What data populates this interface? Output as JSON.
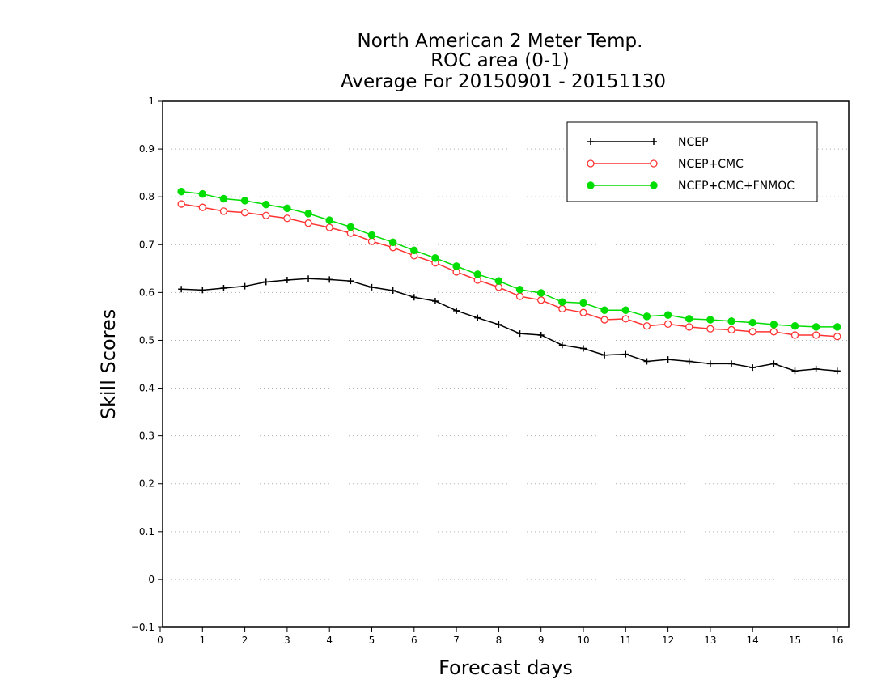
{
  "chart_data": {
    "type": "line",
    "title": "North American 2 Meter Temp.",
    "subtitle": "ROC area (0-1)",
    "subtitle2": "Average For 20150901 - 20151130",
    "xlabel": "Forecast days",
    "ylabel": "Skill Scores",
    "xlim": [
      0,
      16.2
    ],
    "ylim": [
      -0.1,
      1
    ],
    "xticks": [
      "0",
      "1",
      "2",
      "3",
      "4",
      "5",
      "6",
      "7",
      "8",
      "9",
      "10",
      "11",
      "12",
      "13",
      "14",
      "15",
      "16"
    ],
    "yticks": [
      "−0.1",
      "0",
      "0.1",
      "0.2",
      "0.3",
      "0.4",
      "0.5",
      "0.6",
      "0.7",
      "0.8",
      "0.9",
      "1"
    ],
    "grid": true,
    "legend_position": "top-right",
    "x": [
      0.5,
      1.0,
      1.5,
      2.0,
      2.5,
      3.0,
      3.5,
      4.0,
      4.5,
      5.0,
      5.5,
      6.0,
      6.5,
      7.0,
      7.5,
      8.0,
      8.5,
      9.0,
      9.5,
      10.0,
      10.5,
      11.0,
      11.5,
      12.0,
      12.5,
      13.0,
      13.5,
      14.0,
      14.5,
      15.0,
      15.5,
      16.0
    ],
    "series": [
      {
        "name": "NCEP",
        "color": "#000000",
        "marker": "plus",
        "values": [
          0.607,
          0.605,
          0.609,
          0.613,
          0.622,
          0.626,
          0.629,
          0.627,
          0.624,
          0.611,
          0.604,
          0.59,
          0.582,
          0.562,
          0.547,
          0.533,
          0.514,
          0.511,
          0.49,
          0.483,
          0.469,
          0.471,
          0.456,
          0.46,
          0.456,
          0.451,
          0.451,
          0.443,
          0.451,
          0.436,
          0.44,
          0.436
        ]
      },
      {
        "name": "NCEP+CMC",
        "color": "#ff3333",
        "marker": "open-circle",
        "values": [
          0.785,
          0.778,
          0.77,
          0.767,
          0.761,
          0.755,
          0.745,
          0.736,
          0.724,
          0.707,
          0.694,
          0.677,
          0.662,
          0.643,
          0.626,
          0.611,
          0.592,
          0.584,
          0.566,
          0.558,
          0.543,
          0.545,
          0.53,
          0.534,
          0.528,
          0.524,
          0.522,
          0.518,
          0.518,
          0.511,
          0.511,
          0.508
        ]
      },
      {
        "name": "NCEP+CMC+FNMOC",
        "color": "#00dd00",
        "marker": "filled-circle",
        "values": [
          0.811,
          0.806,
          0.796,
          0.792,
          0.784,
          0.776,
          0.765,
          0.751,
          0.737,
          0.72,
          0.705,
          0.688,
          0.672,
          0.655,
          0.638,
          0.624,
          0.606,
          0.599,
          0.58,
          0.578,
          0.563,
          0.563,
          0.55,
          0.553,
          0.545,
          0.543,
          0.54,
          0.537,
          0.533,
          0.53,
          0.528,
          0.528
        ]
      }
    ]
  }
}
